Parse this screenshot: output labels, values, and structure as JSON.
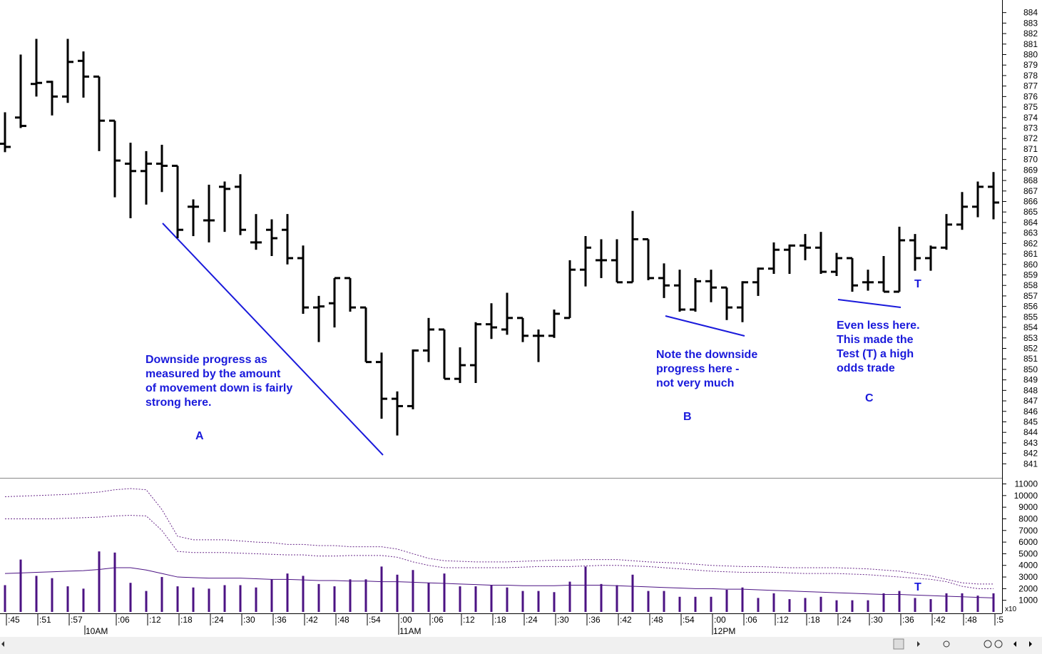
{
  "chart_data": [
    {
      "type": "ohlc",
      "color": "#000000",
      "open": [
        871.5,
        874.0,
        877.2,
        877.4,
        876.0,
        879.4,
        877.9,
        873.7,
        869.6,
        868.9,
        869.6,
        869.4,
        865.5,
        864.2,
        867.4,
        867.4,
        862.1,
        863.3,
        863.3,
        860.6,
        855.9,
        856.3,
        858.7,
        855.9,
        850.7,
        847.2,
        846.5,
        851.8,
        853.8,
        849.1,
        850.4,
        854.3,
        853.8,
        854.9,
        853.2,
        853.2,
        854.9,
        859.5,
        860.4,
        860.4,
        858.3,
        862.4,
        858.7,
        858.0,
        855.7,
        858.4,
        857.8,
        855.9,
        858.3,
        859.6,
        861.4,
        861.8,
        861.6,
        859.3,
        860.6,
        858.3,
        858.3,
        857.4,
        862.3,
        860.6,
        861.6,
        863.8,
        865.5,
        867.4
      ],
      "high": [
        874.5,
        880.0,
        881.5,
        877.5,
        881.5,
        880.3,
        877.9,
        873.7,
        871.6,
        870.8,
        871.4,
        869.4,
        866.2,
        867.6,
        867.9,
        868.6,
        864.8,
        864.3,
        864.8,
        861.8,
        857.0,
        858.7,
        858.7,
        855.9,
        851.6,
        847.9,
        851.9,
        854.9,
        853.8,
        852.1,
        854.5,
        856.3,
        857.3,
        854.9,
        853.8,
        855.7,
        860.4,
        862.7,
        862.4,
        862.4,
        865.1,
        862.4,
        860.1,
        859.5,
        858.7,
        859.5,
        857.8,
        858.4,
        859.7,
        862.1,
        861.9,
        862.9,
        863.1,
        861.1,
        860.6,
        859.5,
        860.8,
        863.6,
        862.9,
        861.8,
        864.8,
        866.9,
        867.9,
        868.8
      ],
      "low": [
        870.7,
        873.0,
        876.0,
        874.2,
        875.4,
        875.9,
        870.8,
        866.4,
        864.4,
        865.7,
        866.9,
        862.5,
        862.7,
        862.1,
        863.1,
        862.8,
        861.4,
        860.8,
        860.0,
        855.3,
        852.6,
        854.0,
        855.5,
        850.7,
        845.3,
        843.7,
        846.2,
        850.7,
        849.1,
        848.7,
        848.7,
        852.9,
        853.3,
        852.6,
        850.7,
        853.0,
        854.9,
        857.9,
        858.7,
        858.3,
        858.3,
        858.5,
        856.8,
        855.5,
        855.5,
        856.4,
        854.7,
        854.5,
        857.0,
        859.1,
        859.1,
        860.4,
        859.1,
        858.9,
        857.4,
        857.5,
        857.4,
        857.4,
        859.4,
        859.4,
        861.4,
        863.3,
        864.5,
        864.3
      ],
      "close": [
        871.2,
        873.2,
        877.3,
        876.0,
        879.3,
        877.9,
        873.7,
        869.9,
        868.9,
        869.6,
        869.4,
        863.3,
        865.5,
        864.2,
        867.2,
        863.3,
        862.1,
        862.5,
        860.6,
        855.9,
        856.0,
        858.7,
        855.9,
        850.7,
        847.2,
        846.5,
        851.8,
        853.8,
        849.1,
        850.4,
        854.3,
        854.0,
        854.9,
        853.2,
        853.2,
        855.3,
        859.5,
        861.6,
        860.4,
        858.3,
        862.4,
        858.7,
        858.0,
        855.7,
        858.4,
        857.8,
        855.9,
        858.3,
        859.6,
        861.4,
        861.8,
        861.6,
        859.3,
        860.6,
        858.0,
        858.3,
        857.4,
        862.3,
        860.6,
        861.6,
        863.8,
        865.5,
        867.4,
        865.9
      ],
      "ylim": [
        839.8,
        885.2
      ],
      "yticks": [
        841,
        842,
        843,
        844,
        845,
        846,
        847,
        848,
        849,
        850,
        851,
        852,
        853,
        854,
        855,
        856,
        857,
        858,
        859,
        860,
        861,
        862,
        863,
        864,
        865,
        866,
        867,
        868,
        869,
        870,
        871,
        872,
        873,
        874,
        875,
        876,
        877,
        878,
        879,
        880,
        881,
        882,
        883,
        884
      ],
      "annotations": [
        "Downside progress as",
        "measured by the amount",
        "of movement down is fairly",
        "strong here.",
        "A",
        "Note the downside",
        "progress here -",
        "not very much",
        "B",
        "Even less here.",
        "This made the",
        "Test (T) a high",
        "odds trade",
        "C",
        "T"
      ]
    },
    {
      "type": "bar",
      "color": "#4b1283",
      "values": [
        2300,
        4500,
        3100,
        2900,
        2200,
        2000,
        5200,
        5100,
        2500,
        1800,
        3000,
        2200,
        2100,
        2000,
        2300,
        2300,
        2100,
        2800,
        3300,
        3100,
        2400,
        2200,
        2800,
        2800,
        3900,
        3200,
        3600,
        2500,
        3300,
        2200,
        2200,
        2300,
        2100,
        1800,
        1800,
        1700,
        2600,
        3900,
        2400,
        2300,
        3200,
        1800,
        1800,
        1300,
        1300,
        1300,
        1900,
        2100,
        1200,
        1600,
        1100,
        1200,
        1300,
        1000,
        1000,
        1000,
        1600,
        1800,
        1200,
        1100,
        1600,
        1600,
        1400,
        1600
      ],
      "lines": [
        {
          "color": "#4b1283",
          "style": "solid",
          "values": [
            3300,
            3350,
            3400,
            3450,
            3500,
            3550,
            3650,
            3800,
            3800,
            3600,
            3300,
            3000,
            2950,
            2900,
            2900,
            2900,
            2850,
            2800,
            2800,
            2750,
            2700,
            2700,
            2650,
            2650,
            2600,
            2600,
            2550,
            2500,
            2450,
            2400,
            2350,
            2300,
            2300,
            2250,
            2250,
            2250,
            2300,
            2300,
            2300,
            2250,
            2200,
            2150,
            2100,
            2050,
            2000,
            2000,
            1950,
            1950,
            1900,
            1850,
            1800,
            1750,
            1700,
            1650,
            1600,
            1550,
            1500,
            1500,
            1450,
            1400,
            1350,
            1300,
            1250,
            1200
          ]
        },
        {
          "color": "#6a2a8a",
          "style": "dotted",
          "values": [
            8000,
            8000,
            8000,
            8000,
            8050,
            8100,
            8150,
            8250,
            8300,
            8250,
            7000,
            5200,
            5100,
            5100,
            5100,
            5050,
            5000,
            4950,
            4900,
            4900,
            4800,
            4800,
            4850,
            4850,
            4850,
            4700,
            4300,
            4000,
            3800,
            3800,
            3800,
            3800,
            3800,
            3850,
            3900,
            3900,
            3900,
            3950,
            4000,
            4000,
            3950,
            3900,
            3800,
            3700,
            3600,
            3500,
            3450,
            3400,
            3400,
            3400,
            3350,
            3300,
            3300,
            3300,
            3250,
            3200,
            3100,
            3000,
            2900,
            2800,
            2600,
            2200,
            2000,
            2000
          ]
        },
        {
          "color": "#6a2a8a",
          "style": "dotted",
          "values": [
            9900,
            9950,
            10000,
            10050,
            10100,
            10200,
            10300,
            10500,
            10600,
            10500,
            8800,
            6500,
            6200,
            6200,
            6200,
            6100,
            6000,
            5950,
            5800,
            5800,
            5700,
            5700,
            5600,
            5600,
            5600,
            5400,
            5000,
            4600,
            4400,
            4350,
            4300,
            4300,
            4300,
            4350,
            4400,
            4450,
            4450,
            4500,
            4500,
            4500,
            4400,
            4300,
            4250,
            4200,
            4100,
            4000,
            3950,
            3900,
            3900,
            3850,
            3800,
            3800,
            3800,
            3800,
            3750,
            3700,
            3600,
            3500,
            3300,
            3100,
            2800,
            2500,
            2400,
            2400
          ]
        }
      ],
      "ylim": [
        0,
        11400
      ],
      "yticks": [
        1000,
        2000,
        3000,
        4000,
        5000,
        6000,
        7000,
        8000,
        9000,
        10000,
        11000
      ],
      "scale_label": "x10",
      "categories": [
        ":45",
        null,
        ":51",
        null,
        ":57",
        null,
        null,
        ":06",
        null,
        ":12",
        null,
        ":18",
        null,
        ":24",
        null,
        ":30",
        null,
        ":36",
        null,
        ":42",
        null,
        ":48",
        null,
        ":54",
        null,
        ":00",
        null,
        ":06",
        null,
        ":12",
        null,
        ":18",
        null,
        ":24",
        null,
        ":30",
        null,
        ":36",
        null,
        ":42",
        null,
        ":48",
        null,
        ":54",
        null,
        ":00",
        null,
        ":06",
        null,
        ":12",
        null,
        ":18",
        null,
        ":24",
        null,
        ":30",
        null,
        ":36",
        null,
        ":42",
        null,
        ":48",
        null,
        ":5"
      ],
      "hour_labels": [
        null,
        null,
        null,
        null,
        null,
        "10AM",
        null,
        null,
        null,
        null,
        null,
        null,
        null,
        null,
        null,
        null,
        null,
        null,
        null,
        null,
        null,
        null,
        null,
        null,
        null,
        "11AM",
        null,
        null,
        null,
        null,
        null,
        null,
        null,
        null,
        null,
        null,
        null,
        null,
        null,
        null,
        null,
        null,
        null,
        null,
        null,
        "12PM",
        null,
        null,
        null,
        null,
        null,
        null,
        null,
        null,
        null,
        null,
        null,
        null,
        null,
        null,
        null,
        null,
        null,
        null
      ],
      "annotations": [
        "T"
      ]
    }
  ]
}
